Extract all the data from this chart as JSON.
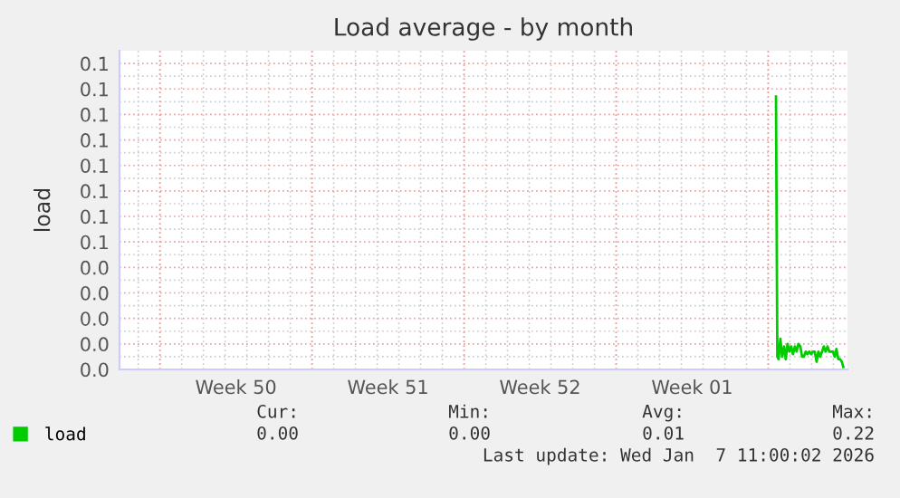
{
  "chart_data": {
    "type": "line",
    "title": "Load average - by month",
    "ylabel": "load",
    "x": [
      "2026-01-04T08:38",
      "2026-01-04T10:05",
      "2026-01-04T11:31",
      "2026-01-04T13:26",
      "2026-01-04T15:22",
      "2026-01-04T17:31",
      "2026-01-04T19:26",
      "2026-01-04T21:22",
      "2026-01-04T23:31",
      "2026-01-05T01:26",
      "2026-01-05T03:22",
      "2026-01-05T05:31",
      "2026-01-05T07:26",
      "2026-01-05T09:22",
      "2026-01-05T11:31",
      "2026-01-05T13:26",
      "2026-01-05T15:22",
      "2026-01-05T17:31",
      "2026-01-05T19:26",
      "2026-01-05T21:22",
      "2026-01-05T23:31",
      "2026-01-06T01:26",
      "2026-01-06T03:22",
      "2026-01-06T05:31",
      "2026-01-06T07:26",
      "2026-01-06T09:22",
      "2026-01-06T11:31",
      "2026-01-06T13:26",
      "2026-01-06T15:22",
      "2026-01-06T17:31",
      "2026-01-06T19:26",
      "2026-01-06T21:22",
      "2026-01-06T23:31",
      "2026-01-07T01:26",
      "2026-01-07T03:22",
      "2026-01-07T05:31",
      "2026-01-07T07:26",
      "2026-01-07T09:22",
      "2026-01-07T11:00"
    ],
    "series": [
      {
        "name": "load",
        "color": "#00cc00",
        "values": [
          0.107,
          0.005,
          0.004,
          0.012,
          0.005,
          0.009,
          0.004,
          0.01,
          0.007,
          0.009,
          0.006,
          0.009,
          0.007,
          0.01,
          0.009,
          0.005,
          0.005,
          0.007,
          0.006,
          0.007,
          0.006,
          0.007,
          0.007,
          0.003,
          0.007,
          0.005,
          0.007,
          0.009,
          0.007,
          0.009,
          0.007,
          0.007,
          0.007,
          0.005,
          0.008,
          0.004,
          0.004,
          0.003,
          0.001
        ]
      }
    ],
    "xlim": [
      "2025-12-05T03:22",
      "2026-01-07T15:36"
    ],
    "xticks": [
      {
        "value": "2025-12-07",
        "label": null
      },
      {
        "value": "2025-12-10T12:00",
        "label": "Week 50"
      },
      {
        "value": "2025-12-14",
        "label": null
      },
      {
        "value": "2025-12-17T12:00",
        "label": "Week 51"
      },
      {
        "value": "2025-12-21",
        "label": null
      },
      {
        "value": "2025-12-24T12:00",
        "label": "Week 52"
      },
      {
        "value": "2025-12-28",
        "label": null
      },
      {
        "value": "2025-12-31T12:00",
        "label": "Week 01"
      },
      {
        "value": "2026-01-04",
        "label": null
      }
    ],
    "ylim": [
      0,
      0.125
    ],
    "yticks": [
      {
        "value": 0,
        "label": "0.0"
      },
      {
        "value": 0.01,
        "label": "0.0"
      },
      {
        "value": 0.02,
        "label": "0.0"
      },
      {
        "value": 0.03,
        "label": "0.0"
      },
      {
        "value": 0.04,
        "label": "0.0"
      },
      {
        "value": 0.05,
        "label": "0.1"
      },
      {
        "value": 0.06,
        "label": "0.1"
      },
      {
        "value": 0.07,
        "label": "0.1"
      },
      {
        "value": 0.08,
        "label": "0.1"
      },
      {
        "value": 0.09,
        "label": "0.1"
      },
      {
        "value": 0.1,
        "label": "0.1"
      },
      {
        "value": 0.11,
        "label": "0.1"
      },
      {
        "value": 0.12,
        "label": "0.1"
      }
    ],
    "grid": true,
    "legend": "bottom left",
    "marker": "none",
    "line_style": "solid",
    "annotations": [
      "Cur:",
      "Min:",
      "Avg:",
      "Max:",
      "0.00",
      "0.00",
      "0.01",
      "0.22",
      "Last update: Wed Jan  7 11:00:02 2026"
    ]
  }
}
